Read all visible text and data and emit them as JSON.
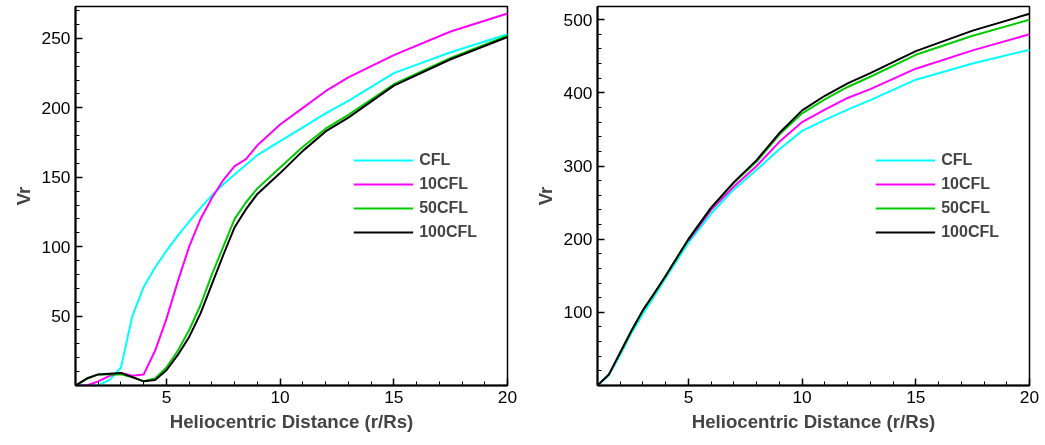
{
  "chart_data": [
    {
      "type": "line",
      "xlabel": "Heliocentric Distance (r/Rs)",
      "ylabel": "Vr",
      "xlim": [
        1,
        20
      ],
      "ylim": [
        0,
        273
      ],
      "xticks": [
        {
          "value": 2,
          "label": null
        },
        {
          "value": 3,
          "label": null
        },
        {
          "value": 4,
          "label": null
        },
        5,
        {
          "value": 6,
          "label": null
        },
        {
          "value": 7,
          "label": null
        },
        {
          "value": 8,
          "label": null
        },
        {
          "value": 9,
          "label": null
        },
        10,
        {
          "value": 11,
          "label": null
        },
        {
          "value": 12,
          "label": null
        },
        {
          "value": 13,
          "label": null
        },
        {
          "value": 14,
          "label": null
        },
        15,
        {
          "value": 16,
          "label": null
        },
        {
          "value": 17,
          "label": null
        },
        {
          "value": 18,
          "label": null
        },
        {
          "value": 19,
          "label": null
        },
        20
      ],
      "yticks": [
        {
          "value": 10,
          "label": null
        },
        {
          "value": 20,
          "label": null
        },
        {
          "value": 30,
          "label": null
        },
        {
          "value": 40,
          "label": null
        },
        50,
        {
          "value": 60,
          "label": null
        },
        {
          "value": 70,
          "label": null
        },
        {
          "value": 80,
          "label": null
        },
        {
          "value": 90,
          "label": null
        },
        100,
        {
          "value": 110,
          "label": null
        },
        {
          "value": 120,
          "label": null
        },
        {
          "value": 130,
          "label": null
        },
        {
          "value": 140,
          "label": null
        },
        150,
        {
          "value": 160,
          "label": null
        },
        {
          "value": 170,
          "label": null
        },
        {
          "value": 180,
          "label": null
        },
        {
          "value": 190,
          "label": null
        },
        200,
        {
          "value": 210,
          "label": null
        },
        {
          "value": 220,
          "label": null
        },
        {
          "value": 230,
          "label": null
        },
        {
          "value": 240,
          "label": null
        },
        250,
        {
          "value": 260,
          "label": null
        },
        {
          "value": 270,
          "label": null
        }
      ],
      "grid": false,
      "legend": "right",
      "marker": "none",
      "line_style": "solid",
      "x": [
        1,
        1.5,
        2,
        2.5,
        3,
        3.5,
        4,
        4.5,
        5,
        5.5,
        6,
        6.5,
        7,
        7.5,
        8,
        8.5,
        9,
        10,
        11,
        12,
        13,
        15,
        17.5,
        20
      ],
      "series": [
        {
          "name": "CFL",
          "color": "#00ffff",
          "values": [
            0,
            0,
            0,
            4,
            13,
            50,
            71,
            85,
            97,
            108,
            118,
            128,
            137,
            145,
            152,
            159,
            166,
            176,
            186,
            196,
            205,
            225,
            240,
            253
          ]
        },
        {
          "name": "10CFL",
          "color": "#ff00ff",
          "values": [
            0,
            0,
            3,
            7,
            9,
            7,
            8,
            25,
            48,
            75,
            100,
            120,
            135,
            148,
            158,
            163,
            173,
            188,
            200,
            212,
            222,
            238,
            255,
            268
          ]
        },
        {
          "name": "50CFL",
          "color": "#00cc00",
          "values": [
            0,
            5,
            8,
            8,
            8,
            6,
            3,
            5,
            13,
            25,
            40,
            58,
            80,
            100,
            120,
            132,
            142,
            157,
            172,
            185,
            195,
            217,
            236,
            252
          ]
        },
        {
          "name": "100CFL",
          "color": "#000000",
          "values": [
            0,
            5,
            8,
            8.5,
            9,
            6,
            3,
            4,
            11,
            22,
            35,
            52,
            73,
            94,
            114,
            127,
            138,
            153,
            169,
            183,
            193,
            216,
            235,
            251
          ]
        }
      ]
    },
    {
      "type": "line",
      "xlabel": "Heliocentric Distance (r/Rs)",
      "ylabel": "Vr",
      "xlim": [
        1,
        20
      ],
      "ylim": [
        0,
        518
      ],
      "xticks": [
        {
          "value": 2,
          "label": null
        },
        {
          "value": 3,
          "label": null
        },
        {
          "value": 4,
          "label": null
        },
        5,
        {
          "value": 6,
          "label": null
        },
        {
          "value": 7,
          "label": null
        },
        {
          "value": 8,
          "label": null
        },
        {
          "value": 9,
          "label": null
        },
        10,
        {
          "value": 11,
          "label": null
        },
        {
          "value": 12,
          "label": null
        },
        {
          "value": 13,
          "label": null
        },
        {
          "value": 14,
          "label": null
        },
        15,
        {
          "value": 16,
          "label": null
        },
        {
          "value": 17,
          "label": null
        },
        {
          "value": 18,
          "label": null
        },
        {
          "value": 19,
          "label": null
        },
        20
      ],
      "yticks": [
        {
          "value": 20,
          "label": null
        },
        {
          "value": 40,
          "label": null
        },
        {
          "value": 60,
          "label": null
        },
        {
          "value": 80,
          "label": null
        },
        100,
        {
          "value": 120,
          "label": null
        },
        {
          "value": 140,
          "label": null
        },
        {
          "value": 160,
          "label": null
        },
        {
          "value": 180,
          "label": null
        },
        200,
        {
          "value": 220,
          "label": null
        },
        {
          "value": 240,
          "label": null
        },
        {
          "value": 260,
          "label": null
        },
        {
          "value": 280,
          "label": null
        },
        300,
        {
          "value": 320,
          "label": null
        },
        {
          "value": 340,
          "label": null
        },
        {
          "value": 360,
          "label": null
        },
        {
          "value": 380,
          "label": null
        },
        400,
        {
          "value": 420,
          "label": null
        },
        {
          "value": 440,
          "label": null
        },
        {
          "value": 460,
          "label": null
        },
        {
          "value": 480,
          "label": null
        },
        500
      ],
      "grid": false,
      "legend": "right",
      "marker": "none",
      "line_style": "solid",
      "x": [
        1,
        1.5,
        2,
        2.5,
        3,
        3.5,
        4,
        5,
        6,
        7,
        8,
        9,
        10,
        11,
        12,
        13,
        15,
        17.5,
        20
      ],
      "series": [
        {
          "name": "CFL",
          "color": "#00ffff",
          "values": [
            0,
            14,
            42,
            72,
            98,
            122,
            147,
            195,
            235,
            268,
            295,
            323,
            348,
            363,
            377,
            390,
            418,
            440,
            459
          ]
        },
        {
          "name": "10CFL",
          "color": "#ff00ff",
          "values": [
            null,
            null,
            null,
            null,
            null,
            null,
            null,
            198,
            240,
            272,
            300,
            333,
            360,
            377,
            393,
            405,
            433,
            458,
            480
          ]
        },
        {
          "name": "50CFL",
          "color": "#00cc00",
          "values": [
            null,
            null,
            45,
            76,
            103,
            126,
            150,
            200,
            243,
            277,
            306,
            343,
            372,
            391,
            408,
            422,
            452,
            478,
            500
          ]
        },
        {
          "name": "100CFL",
          "color": "#000000",
          "values": [
            0,
            15,
            45,
            75,
            103,
            126,
            150,
            200,
            243,
            278,
            308,
            345,
            376,
            396,
            413,
            427,
            457,
            485,
            508
          ]
        }
      ]
    }
  ]
}
